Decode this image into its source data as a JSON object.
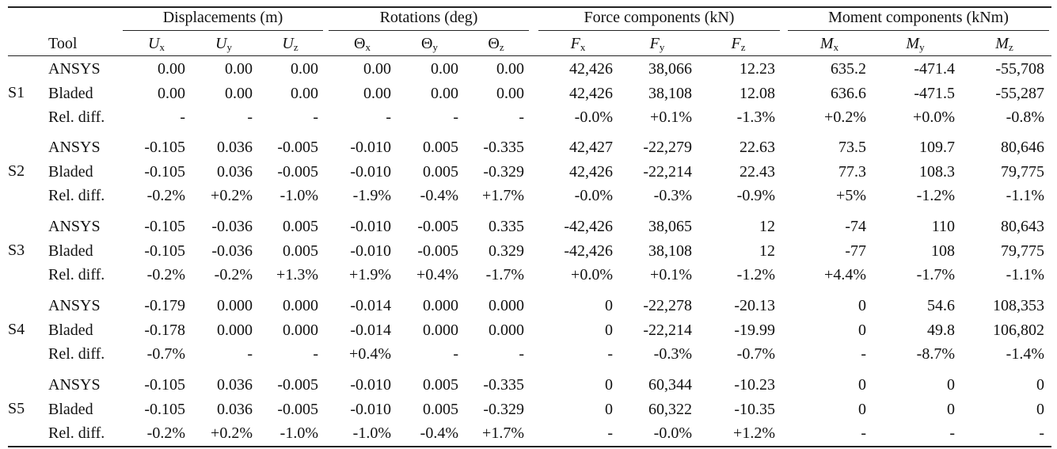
{
  "table": {
    "groups": [
      "Displacements (m)",
      "Rotations (deg)",
      "Force components (kN)",
      "Moment components (kNm)"
    ],
    "tool_header": "Tool",
    "columns": [
      {
        "symbol": "U",
        "sub": "x",
        "italic": true
      },
      {
        "symbol": "U",
        "sub": "y",
        "italic": true
      },
      {
        "symbol": "U",
        "sub": "z",
        "italic": true
      },
      {
        "symbol": "Θ",
        "sub": "x",
        "italic": false
      },
      {
        "symbol": "Θ",
        "sub": "y",
        "italic": false
      },
      {
        "symbol": "Θ",
        "sub": "z",
        "italic": false
      },
      {
        "symbol": "F",
        "sub": "x",
        "italic": true
      },
      {
        "symbol": "F",
        "sub": "y",
        "italic": true
      },
      {
        "symbol": "F",
        "sub": "z",
        "italic": true
      },
      {
        "symbol": "M",
        "sub": "x",
        "italic": true
      },
      {
        "symbol": "M",
        "sub": "y",
        "italic": true
      },
      {
        "symbol": "M",
        "sub": "z",
        "italic": true
      }
    ],
    "cases": [
      {
        "id": "S1",
        "rows": [
          {
            "tool": "ANSYS",
            "values": [
              "0.00",
              "0.00",
              "0.00",
              "0.00",
              "0.00",
              "0.00",
              "42,426",
              "38,066",
              "12.23",
              "635.2",
              "-471.4",
              "-55,708"
            ]
          },
          {
            "tool": "Bladed",
            "values": [
              "0.00",
              "0.00",
              "0.00",
              "0.00",
              "0.00",
              "0.00",
              "42,426",
              "38,108",
              "12.08",
              "636.6",
              "-471.5",
              "-55,287"
            ]
          },
          {
            "tool": "Rel. diff.",
            "values": [
              "-",
              "-",
              "-",
              "-",
              "-",
              "-",
              "-0.0%",
              "+0.1%",
              "-1.3%",
              "+0.2%",
              "+0.0%",
              "-0.8%"
            ]
          }
        ]
      },
      {
        "id": "S2",
        "rows": [
          {
            "tool": "ANSYS",
            "values": [
              "-0.105",
              "0.036",
              "-0.005",
              "-0.010",
              "0.005",
              "-0.335",
              "42,427",
              "-22,279",
              "22.63",
              "73.5",
              "109.7",
              "80,646"
            ]
          },
          {
            "tool": "Bladed",
            "values": [
              "-0.105",
              "0.036",
              "-0.005",
              "-0.010",
              "0.005",
              "-0.329",
              "42,426",
              "-22,214",
              "22.43",
              "77.3",
              "108.3",
              "79,775"
            ]
          },
          {
            "tool": "Rel. diff.",
            "values": [
              "-0.2%",
              "+0.2%",
              "-1.0%",
              "-1.9%",
              "-0.4%",
              "+1.7%",
              "-0.0%",
              "-0.3%",
              "-0.9%",
              "+5%",
              "-1.2%",
              "-1.1%"
            ]
          }
        ]
      },
      {
        "id": "S3",
        "rows": [
          {
            "tool": "ANSYS",
            "values": [
              "-0.105",
              "-0.036",
              "0.005",
              "-0.010",
              "-0.005",
              "0.335",
              "-42,426",
              "38,065",
              "12",
              "-74",
              "110",
              "80,643"
            ]
          },
          {
            "tool": "Bladed",
            "values": [
              "-0.105",
              "-0.036",
              "0.005",
              "-0.010",
              "-0.005",
              "0.329",
              "-42,426",
              "38,108",
              "12",
              "-77",
              "108",
              "79,775"
            ]
          },
          {
            "tool": "Rel. diff.",
            "values": [
              "-0.2%",
              "-0.2%",
              "+1.3%",
              "+1.9%",
              "+0.4%",
              "-1.7%",
              "+0.0%",
              "+0.1%",
              "-1.2%",
              "+4.4%",
              "-1.7%",
              "-1.1%"
            ]
          }
        ]
      },
      {
        "id": "S4",
        "rows": [
          {
            "tool": "ANSYS",
            "values": [
              "-0.179",
              "0.000",
              "0.000",
              "-0.014",
              "0.000",
              "0.000",
              "0",
              "-22,278",
              "-20.13",
              "0",
              "54.6",
              "108,353"
            ]
          },
          {
            "tool": "Bladed",
            "values": [
              "-0.178",
              "0.000",
              "0.000",
              "-0.014",
              "0.000",
              "0.000",
              "0",
              "-22,214",
              "-19.99",
              "0",
              "49.8",
              "106,802"
            ]
          },
          {
            "tool": "Rel. diff.",
            "values": [
              "-0.7%",
              "-",
              "-",
              "+0.4%",
              "-",
              "-",
              "-",
              "-0.3%",
              "-0.7%",
              "-",
              "-8.7%",
              "-1.4%"
            ]
          }
        ]
      },
      {
        "id": "S5",
        "rows": [
          {
            "tool": "ANSYS",
            "values": [
              "-0.105",
              "0.036",
              "-0.005",
              "-0.010",
              "0.005",
              "-0.335",
              "0",
              "60,344",
              "-10.23",
              "0",
              "0",
              "0"
            ]
          },
          {
            "tool": "Bladed",
            "values": [
              "-0.105",
              "0.036",
              "-0.005",
              "-0.010",
              "0.005",
              "-0.329",
              "0",
              "60,322",
              "-10.35",
              "0",
              "0",
              "0"
            ]
          },
          {
            "tool": "Rel. diff.",
            "values": [
              "-0.2%",
              "+0.2%",
              "-1.0%",
              "-1.0%",
              "-0.4%",
              "+1.7%",
              "-",
              "-0.0%",
              "+1.2%",
              "-",
              "-",
              "-"
            ]
          }
        ]
      }
    ]
  }
}
